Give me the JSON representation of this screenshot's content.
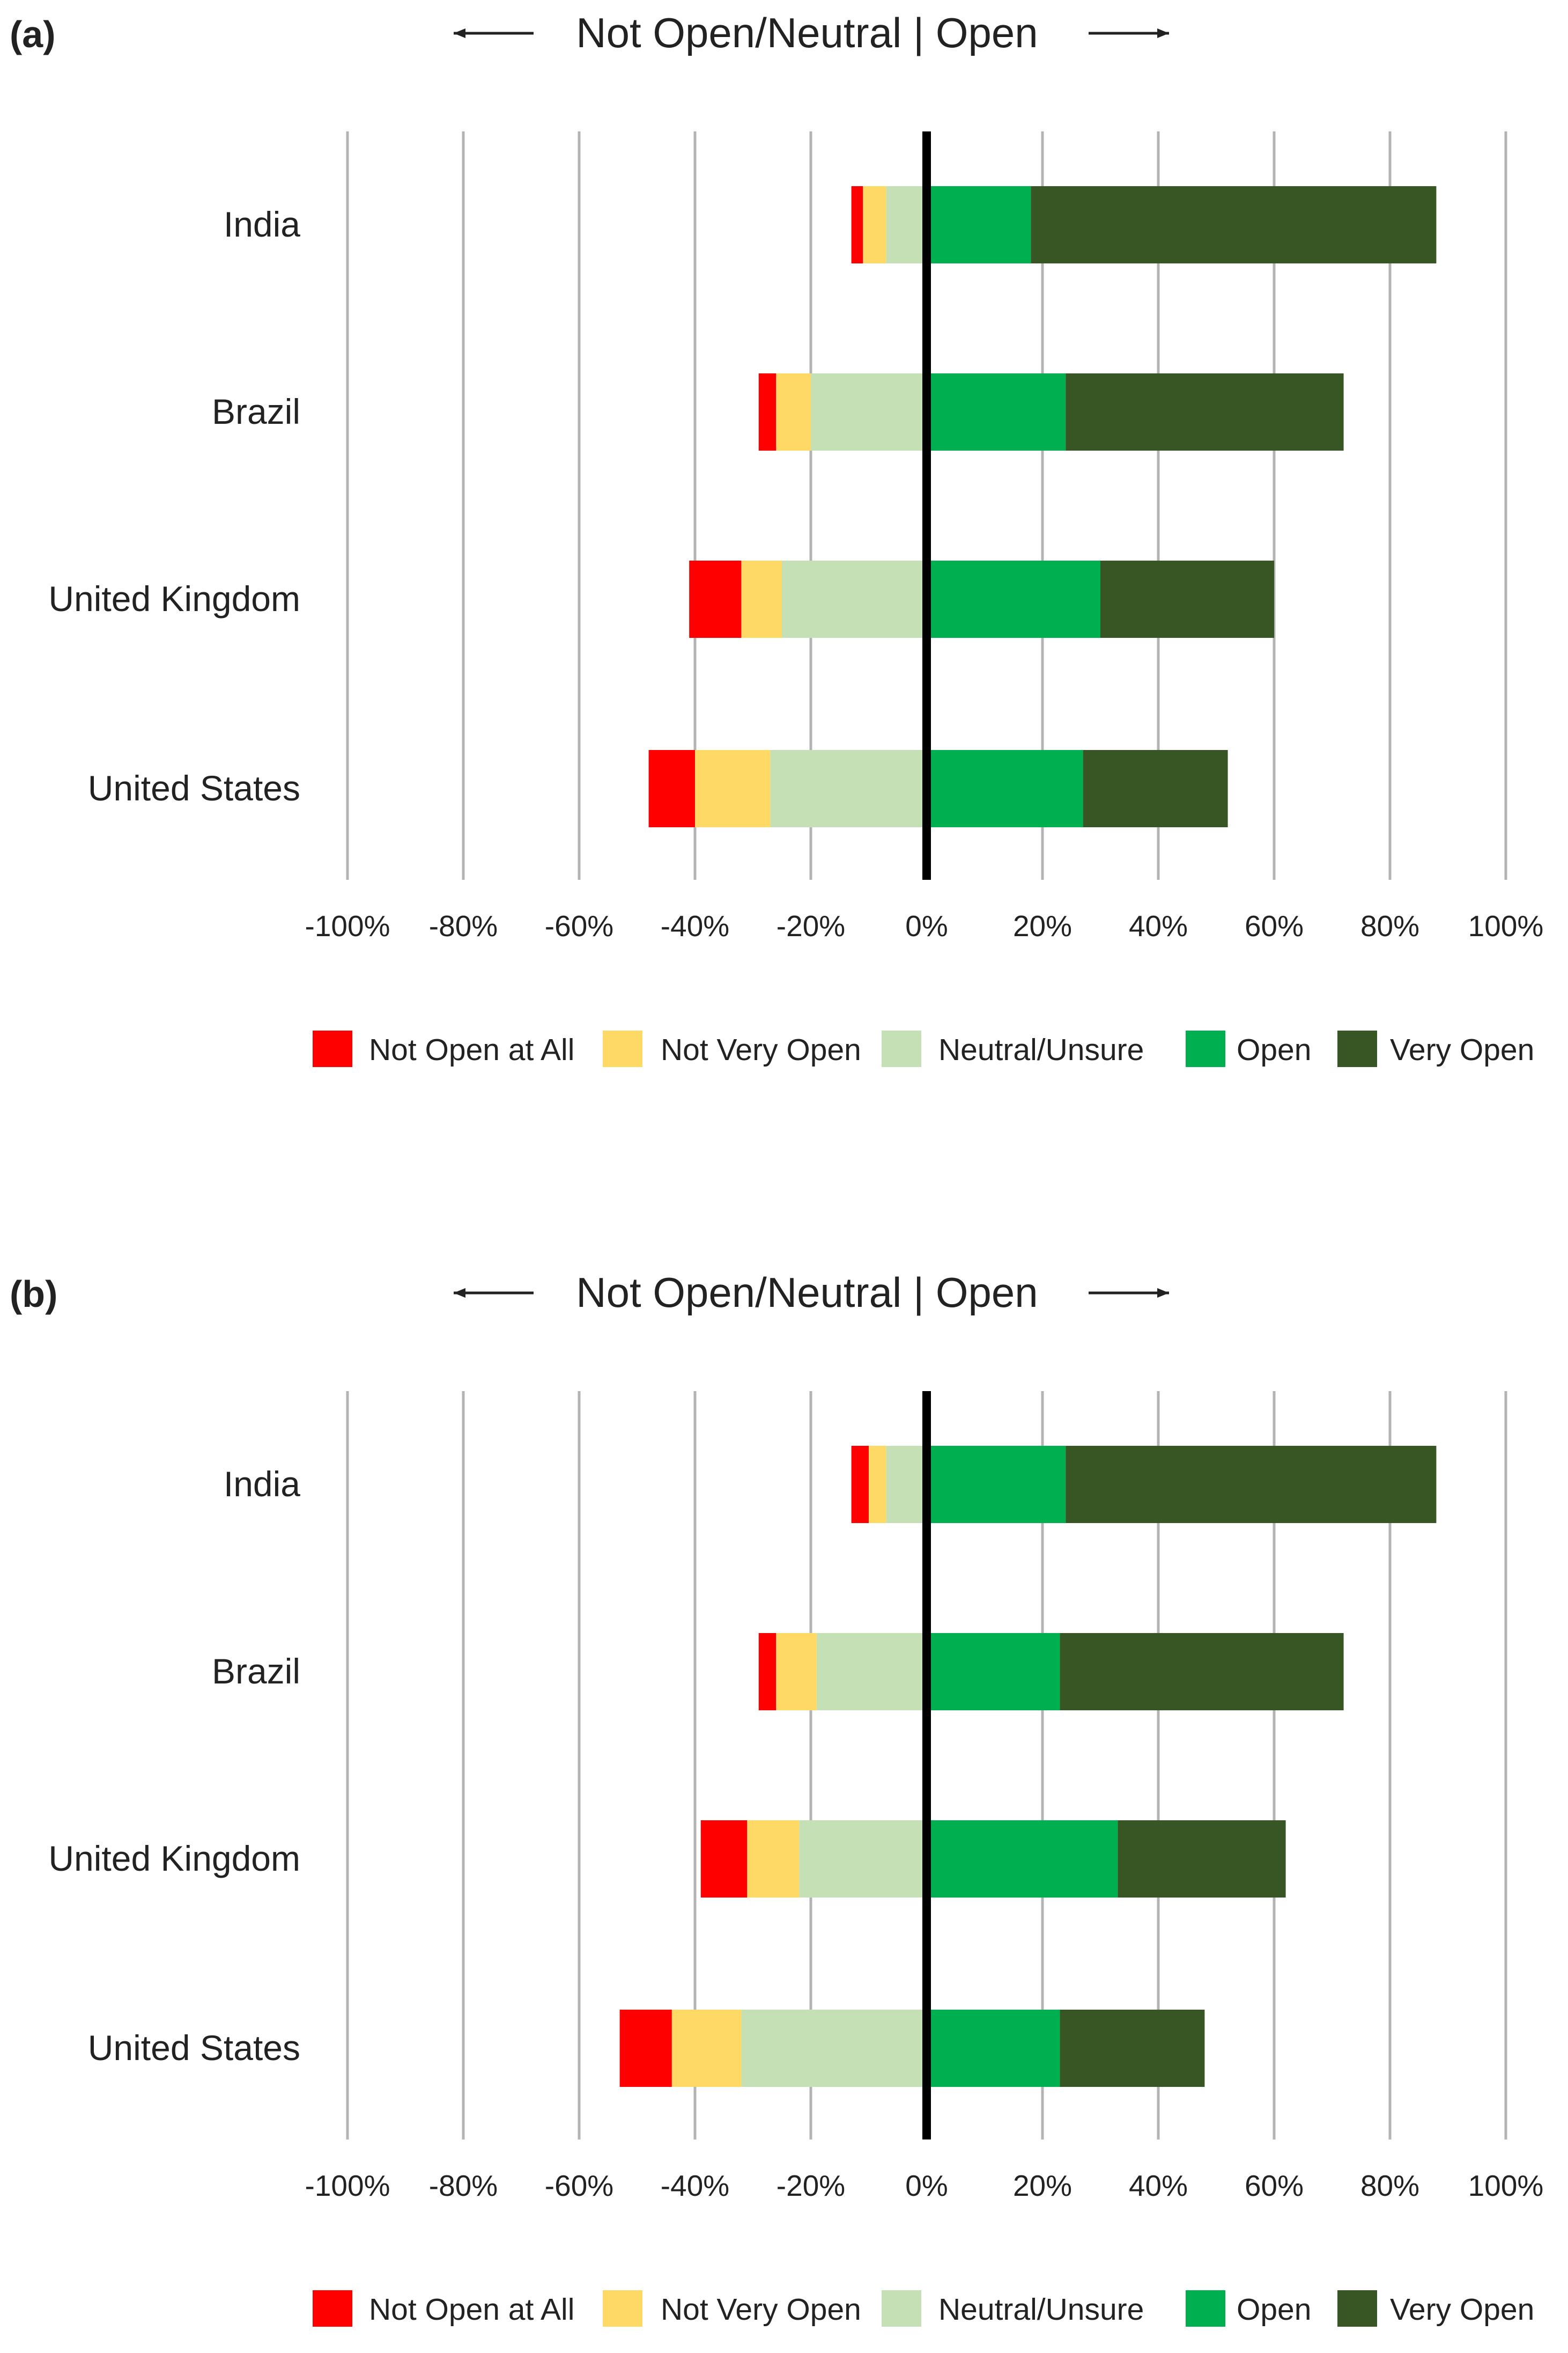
{
  "colors": {
    "not_open_at_all": "#ff0000",
    "not_very_open": "#ffd966",
    "neutral_unsure": "#c5e0b4",
    "open": "#00b050",
    "very_open": "#375623"
  },
  "chart_data": [
    {
      "type": "bar",
      "panel": "(a)",
      "title": "Not Open/Neutral | Open",
      "orientation": "horizontal-diverging",
      "categories": [
        "India",
        "Brazil",
        "United Kingdom",
        "United States"
      ],
      "xlim": [
        -100,
        100
      ],
      "xticks": [
        "-100%",
        "-80%",
        "-60%",
        "-40%",
        "-20%",
        "0%",
        "20%",
        "40%",
        "60%",
        "80%",
        "100%"
      ],
      "grid": true,
      "legend": "bottom",
      "series": [
        {
          "name": "Not Open at All",
          "side": "negative",
          "values": [
            2,
            3,
            9,
            8
          ]
        },
        {
          "name": "Not Very Open",
          "side": "negative",
          "values": [
            4,
            6,
            7,
            13
          ]
        },
        {
          "name": "Neutral/Unsure",
          "side": "negative",
          "values": [
            7,
            20,
            25,
            27
          ]
        },
        {
          "name": "Open",
          "side": "positive",
          "values": [
            18,
            24,
            30,
            27
          ]
        },
        {
          "name": "Very Open",
          "side": "positive",
          "values": [
            70,
            48,
            30,
            25
          ]
        }
      ]
    },
    {
      "type": "bar",
      "panel": "(b)",
      "title": "Not Open/Neutral | Open",
      "orientation": "horizontal-diverging",
      "categories": [
        "India",
        "Brazil",
        "United Kingdom",
        "United States"
      ],
      "xlim": [
        -100,
        100
      ],
      "xticks": [
        "-100%",
        "-80%",
        "-60%",
        "-40%",
        "-20%",
        "0%",
        "20%",
        "40%",
        "60%",
        "80%",
        "100%"
      ],
      "grid": true,
      "legend": "bottom",
      "series": [
        {
          "name": "Not Open at All",
          "side": "negative",
          "values": [
            3,
            3,
            8,
            9
          ]
        },
        {
          "name": "Not Very Open",
          "side": "negative",
          "values": [
            3,
            7,
            9,
            12
          ]
        },
        {
          "name": "Neutral/Unsure",
          "side": "negative",
          "values": [
            7,
            19,
            22,
            32
          ]
        },
        {
          "name": "Open",
          "side": "positive",
          "values": [
            24,
            23,
            33,
            23
          ]
        },
        {
          "name": "Very Open",
          "side": "positive",
          "values": [
            64,
            49,
            29,
            25
          ]
        }
      ]
    }
  ]
}
